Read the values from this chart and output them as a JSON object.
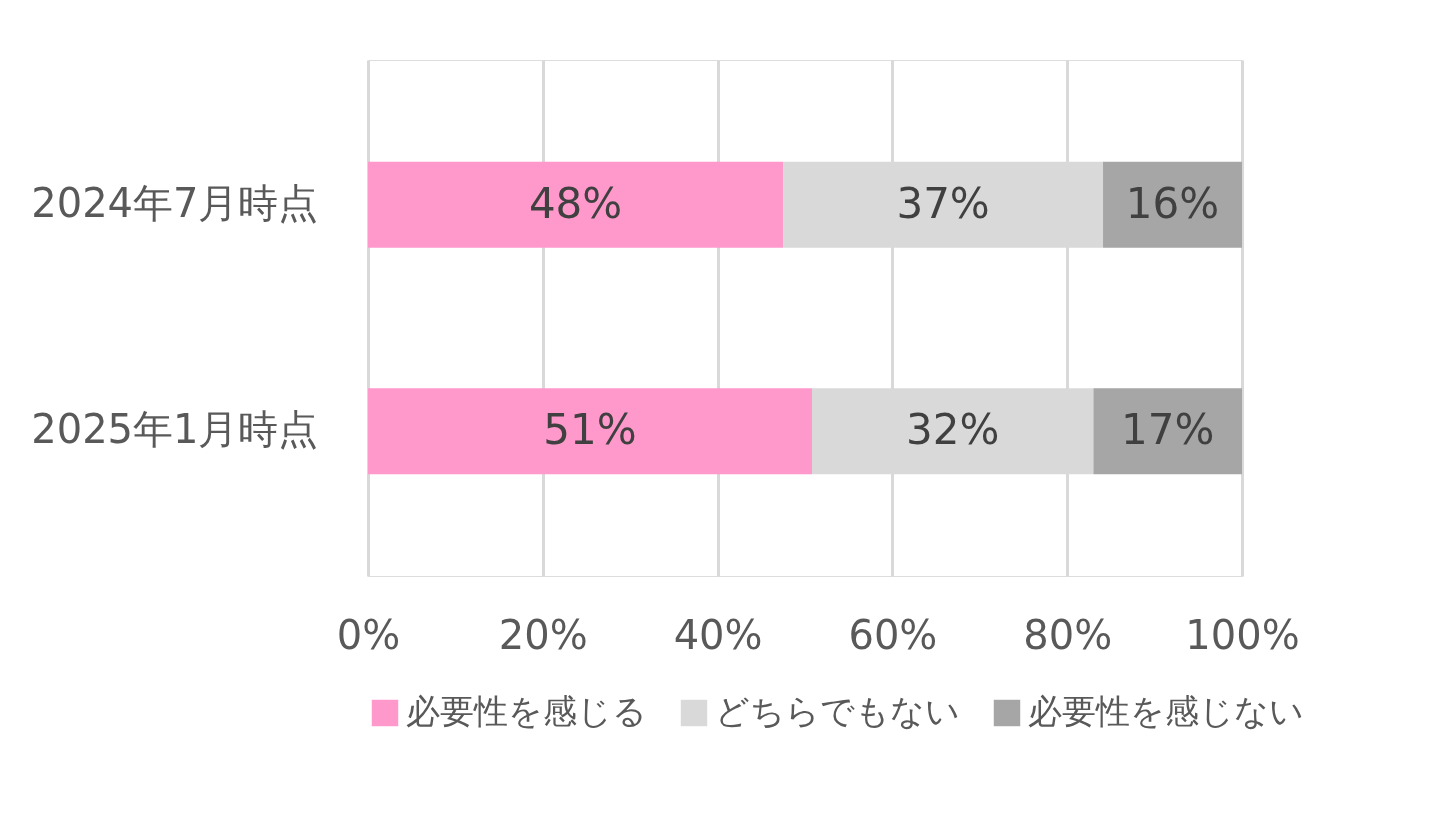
{
  "chart_data": {
    "type": "bar",
    "orientation": "horizontal",
    "stacked": true,
    "categories": [
      "2024年7月時点",
      "2025年1月時点"
    ],
    "series": [
      {
        "name": "必要性を感じる",
        "color": "#ff99cc",
        "values": [
          47.5,
          50.8
        ],
        "value_labels": [
          "48%",
          "51%"
        ]
      },
      {
        "name": "どちらでもない",
        "color": "#d9d9d9",
        "values": [
          36.6,
          32.2
        ],
        "value_labels": [
          "37%",
          "32%"
        ]
      },
      {
        "name": "必要性を感じない",
        "color": "#a6a6a6",
        "values": [
          15.9,
          17.0
        ],
        "value_labels": [
          "16%",
          "17%"
        ]
      }
    ],
    "xlim": [
      0,
      100
    ],
    "xticks": [
      {
        "value": 0,
        "label": "0%"
      },
      {
        "value": 20,
        "label": "20%"
      },
      {
        "value": 40,
        "label": "40%"
      },
      {
        "value": 60,
        "label": "60%"
      },
      {
        "value": 80,
        "label": "80%"
      },
      {
        "value": 100,
        "label": "100%"
      }
    ],
    "grid": "x",
    "legend": "bottom"
  }
}
